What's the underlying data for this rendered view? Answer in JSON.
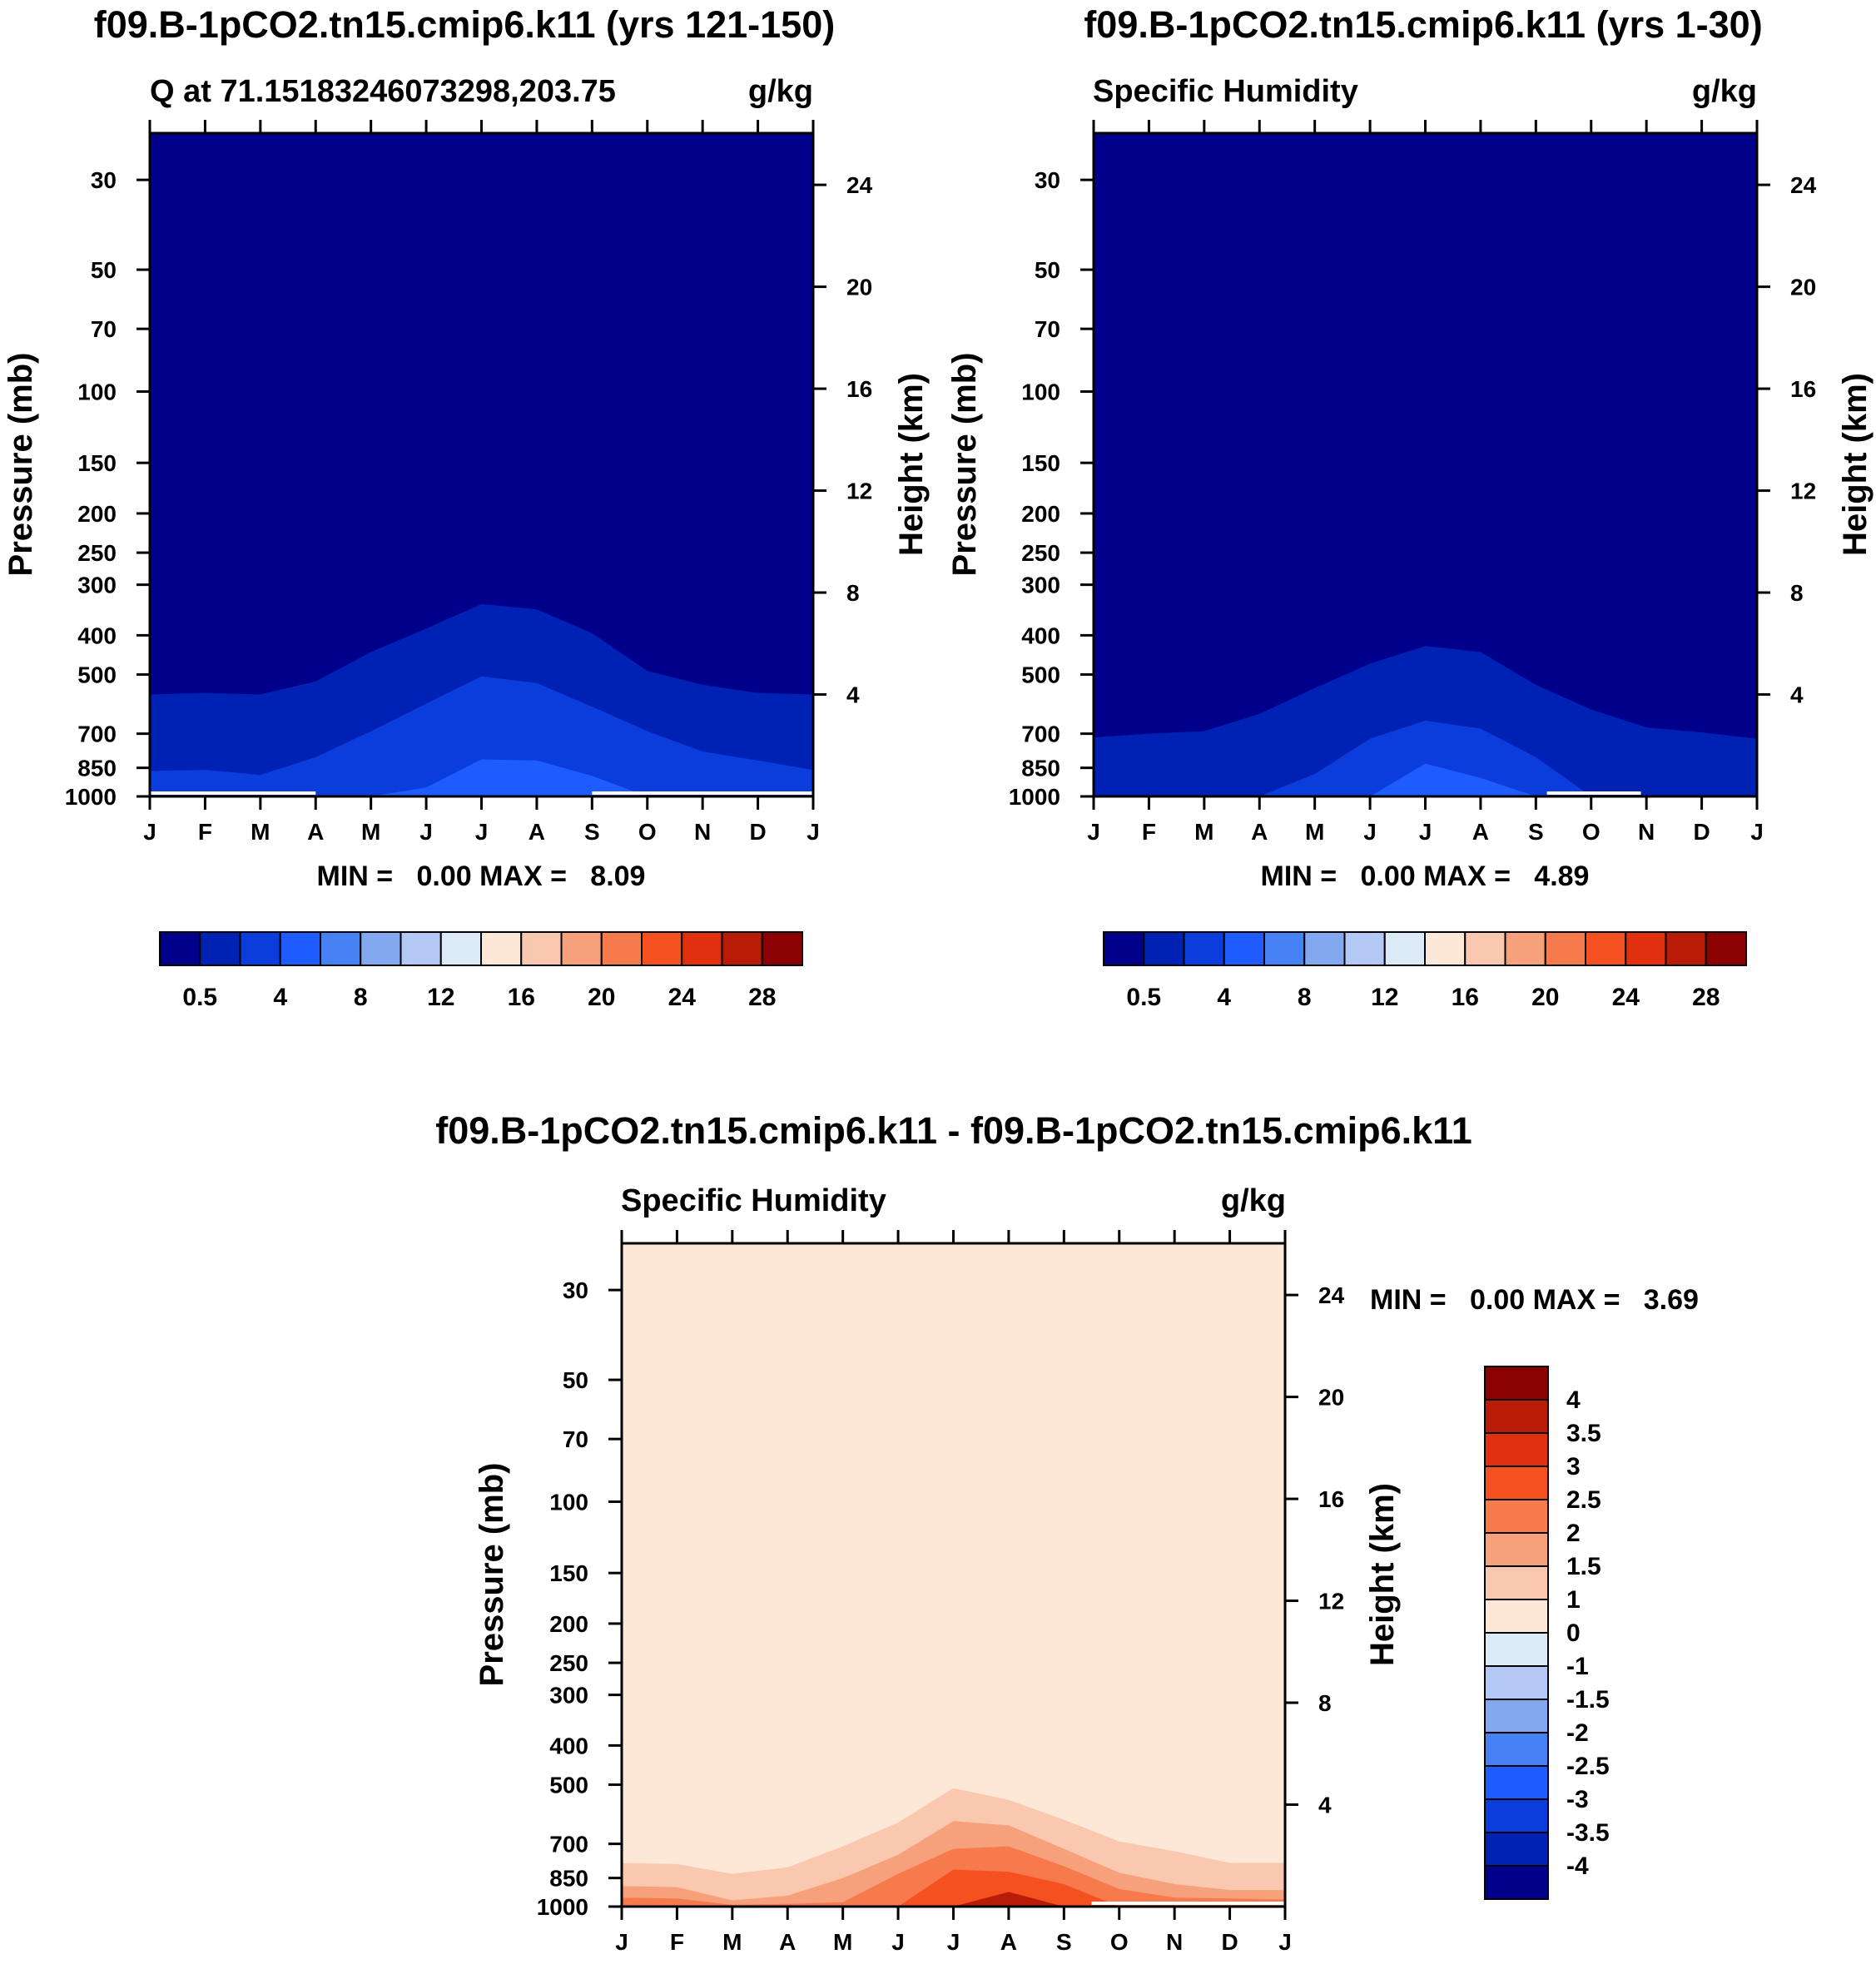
{
  "panels": [
    {
      "id": "p1",
      "title": "f09.B-1pCO2.tn15.cmip6.k11 (yrs 121-150)",
      "left_label": "Q at 71.15183246073298,203.75",
      "right_label": "g/kg",
      "ylabel": "Pressure (mb)",
      "ylabel2": "Height (km)",
      "minmax_text": "MIN =   0.00 MAX =   8.09"
    },
    {
      "id": "p2",
      "title": "f09.B-1pCO2.tn15.cmip6.k11 (yrs 1-30)",
      "left_label": "Specific Humidity",
      "right_label": "g/kg",
      "ylabel": "Pressure (mb)",
      "ylabel2": "Height (km)",
      "minmax_text": "MIN =   0.00 MAX =   4.89"
    },
    {
      "id": "p3",
      "title": "f09.B-1pCO2.tn15.cmip6.k11 - f09.B-1pCO2.tn15.cmip6.k11",
      "left_label": "Specific Humidity",
      "right_label": "g/kg",
      "ylabel": "Pressure (mb)",
      "ylabel2": "Height (km)",
      "minmax_text": "MIN =   0.00 MAX =   3.69"
    }
  ],
  "colors": {
    "seq": [
      "#00008b",
      "#0022b4",
      "#0a3ddb",
      "#1e5cff",
      "#4682f5",
      "#82a8f0",
      "#b4c8f5",
      "#dceaf8",
      "#fde8d8",
      "#fac8ae",
      "#f7a07c",
      "#f77a4c",
      "#f55020",
      "#e03010",
      "#b81c06",
      "#8b0000"
    ],
    "diff": [
      "#00008b",
      "#0022b4",
      "#0a3ddb",
      "#1e5cff",
      "#4682f5",
      "#82a8f0",
      "#b4c8f5",
      "#dceaf8",
      "#fde8d8",
      "#fac8ae",
      "#f7a07c",
      "#f77a4c",
      "#f55020",
      "#e03010",
      "#b81c06",
      "#8b0000"
    ]
  },
  "colorbar_labels": {
    "seq": [
      "0.5",
      "4",
      "8",
      "12",
      "16",
      "20",
      "24",
      "28"
    ],
    "diff": [
      "4",
      "3.5",
      "3",
      "2.5",
      "2",
      "1.5",
      "1",
      "0",
      "-1",
      "-1.5",
      "-2",
      "-2.5",
      "-3",
      "-3.5",
      "-4"
    ]
  },
  "chart_data": [
    {
      "type": "contour",
      "panel": "p1",
      "x": [
        "J",
        "F",
        "M",
        "A",
        "M",
        "J",
        "J",
        "A",
        "S",
        "O",
        "N",
        "D",
        "J"
      ],
      "yticks_pressure": [
        "30",
        "50",
        "70",
        "100",
        "150",
        "200",
        "250",
        "300",
        "400",
        "500",
        "700",
        "850",
        "1000"
      ],
      "yticks_height": [
        "24",
        "20",
        "16",
        "12",
        "8",
        "4"
      ],
      "ylim_pressure": [
        1000,
        23
      ],
      "levels": [
        0.5,
        2,
        4,
        6,
        8,
        10,
        12,
        14,
        16,
        18,
        20,
        22,
        24,
        26,
        28
      ],
      "min": 0.0,
      "max": 8.09,
      "contours": [
        {
          "level": 0.5,
          "p": [
            560,
            555,
            560,
            520,
            440,
            385,
            335,
            345,
            395,
            490,
            530,
            555,
            560
          ]
        },
        {
          "level": 2,
          "p": [
            865,
            860,
            885,
            800,
            690,
            590,
            505,
            525,
            600,
            690,
            775,
            815,
            860
          ]
        },
        {
          "level": 4,
          "p": [
            1000,
            1000,
            1000,
            1000,
            1000,
            950,
            810,
            815,
            890,
            1000,
            1000,
            1000,
            1000
          ]
        }
      ],
      "low_strip_x": [
        [
          0,
          3
        ],
        [
          8,
          12
        ]
      ]
    },
    {
      "type": "contour",
      "panel": "p2",
      "x": [
        "J",
        "F",
        "M",
        "A",
        "M",
        "J",
        "J",
        "A",
        "S",
        "O",
        "N",
        "D",
        "J"
      ],
      "yticks_pressure": [
        "30",
        "50",
        "70",
        "100",
        "150",
        "200",
        "250",
        "300",
        "400",
        "500",
        "700",
        "850",
        "1000"
      ],
      "yticks_height": [
        "24",
        "20",
        "16",
        "12",
        "8",
        "4"
      ],
      "ylim_pressure": [
        1000,
        23
      ],
      "levels": [
        0.5,
        2,
        4,
        6,
        8,
        10,
        12,
        14,
        16,
        18,
        20,
        22,
        24,
        26,
        28
      ],
      "min": 0.0,
      "max": 4.89,
      "contours": [
        {
          "level": 0.5,
          "p": [
            715,
            700,
            690,
            625,
            540,
            470,
            425,
            440,
            530,
            610,
            675,
            695,
            720
          ]
        },
        {
          "level": 2,
          "p": [
            1000,
            1000,
            1000,
            1000,
            880,
            720,
            650,
            680,
            800,
            1000,
            1000,
            1000,
            1000
          ]
        },
        {
          "level": 4,
          "p": [
            1000,
            1000,
            1000,
            1000,
            1000,
            1000,
            830,
            900,
            1000,
            1000,
            1000,
            1000,
            1000
          ]
        }
      ],
      "low_strip_x": [
        [
          8.2,
          9.9
        ]
      ]
    },
    {
      "type": "contour",
      "panel": "p3",
      "x": [
        "J",
        "F",
        "M",
        "A",
        "M",
        "J",
        "J",
        "A",
        "S",
        "O",
        "N",
        "D",
        "J"
      ],
      "yticks_pressure": [
        "30",
        "50",
        "70",
        "100",
        "150",
        "200",
        "250",
        "300",
        "400",
        "500",
        "700",
        "850",
        "1000"
      ],
      "yticks_height": [
        "24",
        "20",
        "16",
        "12",
        "8",
        "4"
      ],
      "ylim_pressure": [
        1000,
        23
      ],
      "levels": [
        -4,
        -3.5,
        -3,
        -2.5,
        -2,
        -1.5,
        -1,
        0,
        1,
        1.5,
        2,
        2.5,
        3,
        3.5,
        4
      ],
      "min": 0.0,
      "max": 3.69,
      "contours": [
        {
          "level": 1,
          "p": [
            780,
            785,
            830,
            800,
            710,
            620,
            510,
            545,
            610,
            690,
            730,
            780,
            780
          ]
        },
        {
          "level": 1.5,
          "p": [
            890,
            895,
            965,
            940,
            850,
            745,
            615,
            630,
            720,
            825,
            880,
            910,
            910
          ]
        },
        {
          "level": 2,
          "p": [
            950,
            955,
            990,
            985,
            975,
            830,
            720,
            710,
            795,
            905,
            950,
            955,
            960
          ]
        },
        {
          "level": 2.5,
          "p": [
            1000,
            1000,
            1000,
            1000,
            1000,
            1000,
            810,
            820,
            880,
            1000,
            1000,
            1000,
            1000
          ]
        },
        {
          "level": 3.5,
          "p": [
            1000,
            1000,
            1000,
            1000,
            1000,
            1000,
            1000,
            920,
            1000,
            1000,
            1000,
            1000,
            1000
          ]
        }
      ],
      "low_strip_x": [
        [
          8.5,
          12
        ]
      ]
    }
  ]
}
